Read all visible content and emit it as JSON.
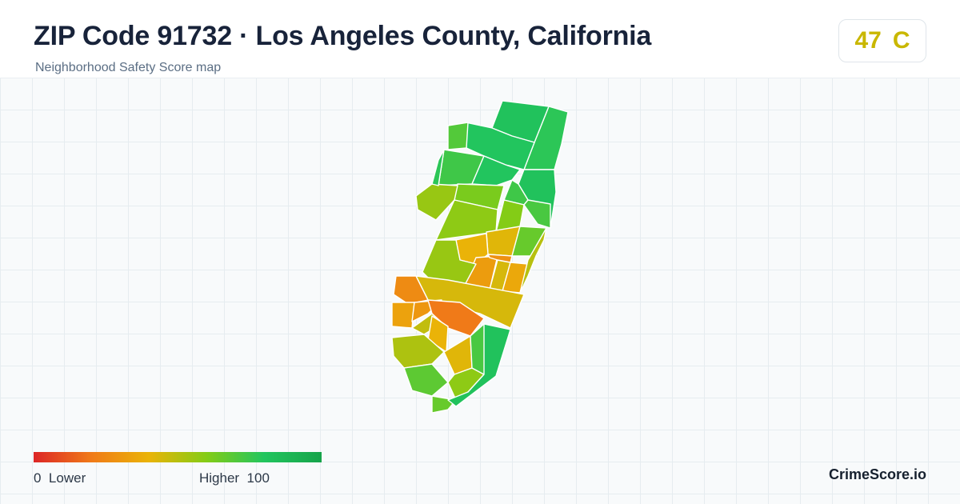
{
  "header": {
    "title": "ZIP Code 91732 · Los Angeles County, California",
    "subtitle": "Neighborhood Safety Score map"
  },
  "score": {
    "value": "47",
    "grade": "C",
    "color": "#c9b700"
  },
  "legend": {
    "min_value": "0",
    "min_label": "Lower",
    "max_label": "Higher",
    "max_value": "100",
    "colors": [
      "#dc2626",
      "#f07a18",
      "#eab308",
      "#84cc16",
      "#22c55e",
      "#16a34a"
    ]
  },
  "brand": "CrimeScore.io",
  "map": {
    "region_scores": [
      78,
      82,
      80,
      70,
      74,
      80,
      82,
      62,
      56,
      78,
      74,
      72,
      60,
      58,
      42,
      66,
      40,
      32,
      44,
      36,
      28,
      56,
      50,
      44,
      26,
      34,
      30,
      20,
      48,
      40,
      52,
      42,
      68,
      58,
      72,
      66,
      82
    ]
  }
}
